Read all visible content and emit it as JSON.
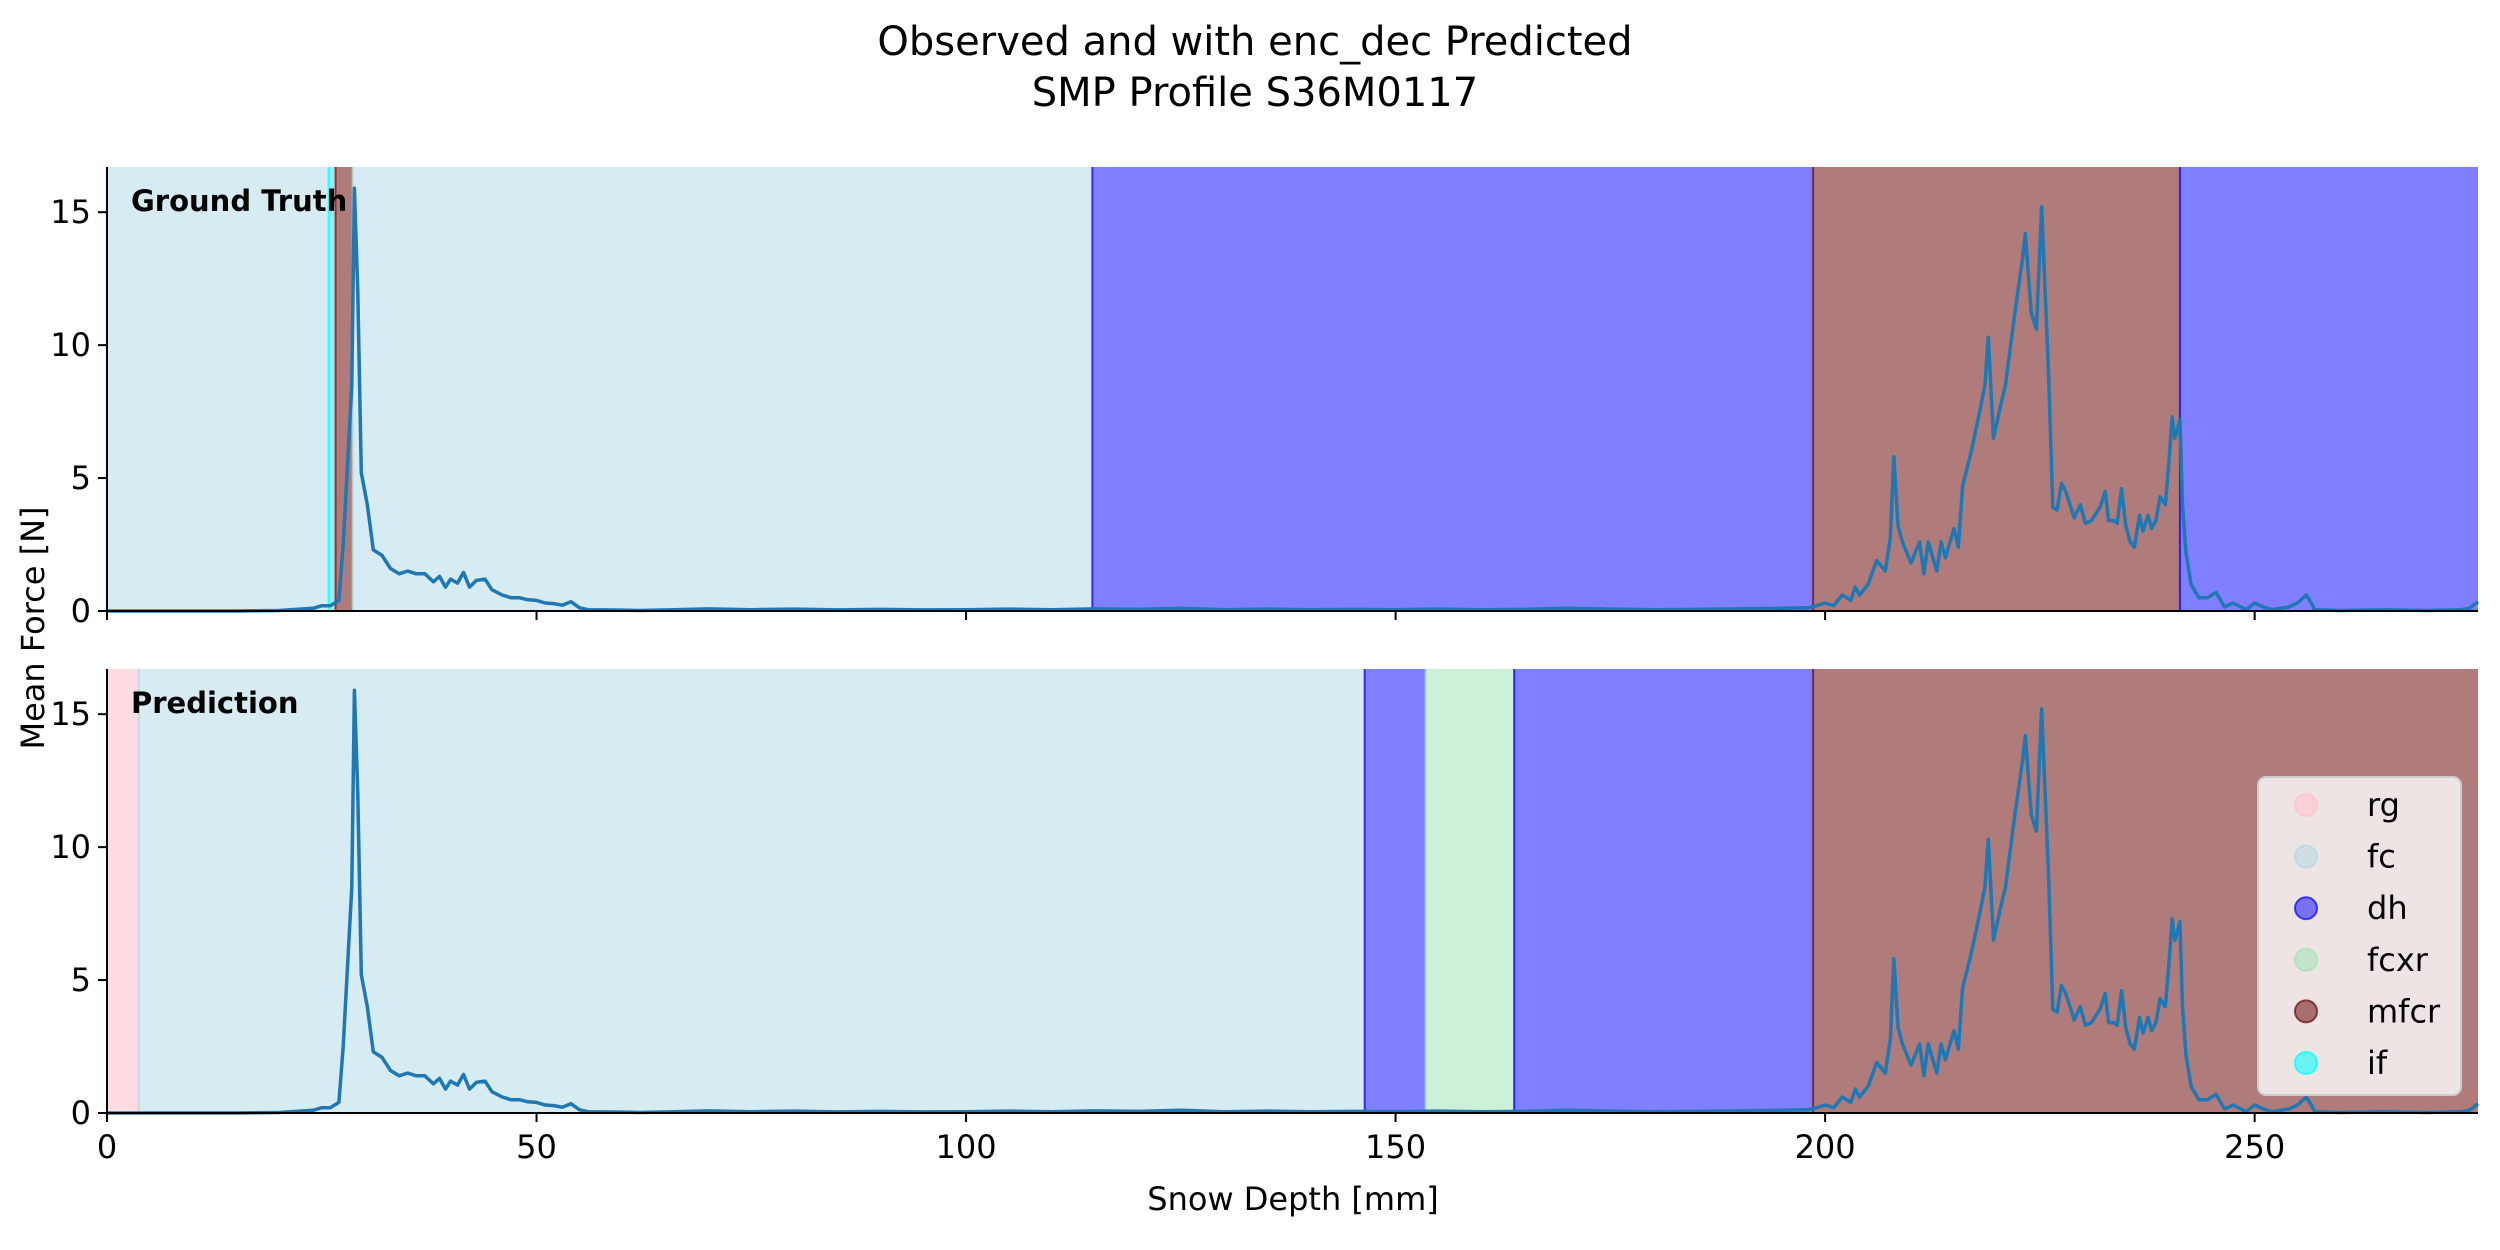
{
  "chart_data": {
    "type": "area",
    "title": [
      "Observed and with enc_dec Predicted",
      "SMP Profile S36M0117"
    ],
    "xlabel": "Snow Depth [mm]",
    "ylabel": "Mean Force [N]",
    "xlim": [
      0,
      276
    ],
    "ylim": [
      0,
      16.7
    ],
    "x_ticks": [
      0,
      50,
      100,
      150,
      200,
      250
    ],
    "y_ticks": [
      0,
      5,
      10,
      15
    ],
    "grid": false,
    "legend_position": "lower-right",
    "classes": [
      {
        "name": "rg",
        "color": "#ffc0cb",
        "alpha": 0.55
      },
      {
        "name": "fc",
        "color": "#add8e6",
        "alpha": 0.5
      },
      {
        "name": "dh",
        "color": "#0000ff",
        "alpha": 0.5
      },
      {
        "name": "fcxr",
        "color": "#9ae3b2",
        "alpha": 0.5
      },
      {
        "name": "mfcr",
        "color": "#6e0f0f",
        "alpha": 0.55
      },
      {
        "name": "if",
        "color": "#00ffff",
        "alpha": 0.55
      }
    ],
    "panels": [
      {
        "label": "Ground Truth",
        "segments": [
          {
            "start": 0,
            "end": 25.8,
            "cls": "fc"
          },
          {
            "start": 25.8,
            "end": 26.3,
            "cls": "if"
          },
          {
            "start": 26.3,
            "end": 26.6,
            "cls": "fc"
          },
          {
            "start": 26.6,
            "end": 28.6,
            "cls": "mfcr"
          },
          {
            "start": 28.6,
            "end": 114.7,
            "cls": "fc"
          },
          {
            "start": 114.7,
            "end": 198.6,
            "cls": "dh"
          },
          {
            "start": 198.6,
            "end": 241.3,
            "cls": "mfcr"
          },
          {
            "start": 241.3,
            "end": 276,
            "cls": "dh"
          }
        ]
      },
      {
        "label": "Prediction",
        "segments": [
          {
            "start": 0,
            "end": 3.7,
            "cls": "rg"
          },
          {
            "start": 3.7,
            "end": 146.4,
            "cls": "fc"
          },
          {
            "start": 146.4,
            "end": 153.5,
            "cls": "dh"
          },
          {
            "start": 153.5,
            "end": 163.8,
            "cls": "fcxr"
          },
          {
            "start": 163.8,
            "end": 198.6,
            "cls": "dh"
          },
          {
            "start": 198.6,
            "end": 276,
            "cls": "mfcr"
          }
        ]
      }
    ],
    "series": [
      {
        "color": "#1f77b4",
        "points": [
          [
            0,
            0
          ],
          [
            5,
            0
          ],
          [
            10,
            0
          ],
          [
            15,
            0
          ],
          [
            20,
            0.02
          ],
          [
            24,
            0.1
          ],
          [
            25,
            0.2
          ],
          [
            26,
            0.2
          ],
          [
            27,
            0.4
          ],
          [
            27.5,
            2.5
          ],
          [
            28,
            5.5
          ],
          [
            28.5,
            8.5
          ],
          [
            28.8,
            15.9
          ],
          [
            29.2,
            12
          ],
          [
            29.6,
            5.2
          ],
          [
            30.3,
            4
          ],
          [
            31,
            2.3
          ],
          [
            32,
            2.1
          ],
          [
            33,
            1.6
          ],
          [
            34,
            1.4
          ],
          [
            35,
            1.5
          ],
          [
            36,
            1.4
          ],
          [
            37,
            1.4
          ],
          [
            38,
            1.1
          ],
          [
            38.7,
            1.3
          ],
          [
            39.4,
            0.9
          ],
          [
            40,
            1.2
          ],
          [
            40.8,
            1.05
          ],
          [
            41.5,
            1.45
          ],
          [
            42.2,
            0.9
          ],
          [
            43,
            1.15
          ],
          [
            44,
            1.2
          ],
          [
            44.8,
            0.8
          ],
          [
            46,
            0.6
          ],
          [
            47,
            0.5
          ],
          [
            48,
            0.5
          ],
          [
            49,
            0.42
          ],
          [
            50,
            0.4
          ],
          [
            51,
            0.3
          ],
          [
            52,
            0.28
          ],
          [
            53,
            0.22
          ],
          [
            54,
            0.35
          ],
          [
            55,
            0.12
          ],
          [
            56,
            0.05
          ],
          [
            58,
            0.04
          ],
          [
            62,
            0.02
          ],
          [
            66,
            0.05
          ],
          [
            70,
            0.08
          ],
          [
            75,
            0.05
          ],
          [
            80,
            0.07
          ],
          [
            85,
            0.04
          ],
          [
            90,
            0.06
          ],
          [
            95,
            0.04
          ],
          [
            100,
            0.05
          ],
          [
            105,
            0.07
          ],
          [
            110,
            0.05
          ],
          [
            115,
            0.08
          ],
          [
            120,
            0.06
          ],
          [
            125,
            0.1
          ],
          [
            130,
            0.05
          ],
          [
            135,
            0.07
          ],
          [
            140,
            0.05
          ],
          [
            145,
            0.06
          ],
          [
            150,
            0.05
          ],
          [
            155,
            0.07
          ],
          [
            160,
            0.05
          ],
          [
            165,
            0.06
          ],
          [
            170,
            0.1
          ],
          [
            175,
            0.07
          ],
          [
            180,
            0.05
          ],
          [
            185,
            0.06
          ],
          [
            190,
            0.08
          ],
          [
            195,
            0.1
          ],
          [
            198,
            0.12
          ],
          [
            199,
            0.2
          ],
          [
            200,
            0.3
          ],
          [
            201,
            0.2
          ],
          [
            202,
            0.6
          ],
          [
            203,
            0.4
          ],
          [
            203.5,
            0.9
          ],
          [
            204,
            0.6
          ],
          [
            205,
            1.0
          ],
          [
            206,
            1.9
          ],
          [
            207,
            1.5
          ],
          [
            207.6,
            2.8
          ],
          [
            208,
            5.8
          ],
          [
            208.5,
            3.2
          ],
          [
            209,
            2.6
          ],
          [
            210,
            1.8
          ],
          [
            211,
            2.6
          ],
          [
            211.5,
            1.4
          ],
          [
            212,
            2.6
          ],
          [
            213,
            1.5
          ],
          [
            213.5,
            2.6
          ],
          [
            214,
            2.0
          ],
          [
            215,
            3.1
          ],
          [
            215.5,
            2.4
          ],
          [
            216,
            4.7
          ],
          [
            217,
            6.0
          ],
          [
            218,
            7.5
          ],
          [
            218.6,
            8.5
          ],
          [
            219,
            10.3
          ],
          [
            219.6,
            6.5
          ],
          [
            220.4,
            7.7
          ],
          [
            221,
            8.5
          ],
          [
            222,
            11.0
          ],
          [
            223,
            13.3
          ],
          [
            223.3,
            14.2
          ],
          [
            224,
            11.2
          ],
          [
            224.6,
            10.6
          ],
          [
            225.2,
            15.2
          ],
          [
            226,
            9.0
          ],
          [
            226.5,
            3.9
          ],
          [
            227,
            3.8
          ],
          [
            227.5,
            4.8
          ],
          [
            228,
            4.5
          ],
          [
            229,
            3.5
          ],
          [
            229.7,
            4.0
          ],
          [
            230.3,
            3.3
          ],
          [
            231,
            3.4
          ],
          [
            232,
            3.9
          ],
          [
            232.6,
            4.5
          ],
          [
            233,
            3.4
          ],
          [
            233.6,
            3.4
          ],
          [
            234,
            3.3
          ],
          [
            234.5,
            4.6
          ],
          [
            235,
            3.2
          ],
          [
            235.5,
            2.6
          ],
          [
            236,
            2.4
          ],
          [
            236.6,
            3.6
          ],
          [
            237,
            3.0
          ],
          [
            237.6,
            3.6
          ],
          [
            238,
            3.1
          ],
          [
            238.5,
            3.4
          ],
          [
            239,
            4.3
          ],
          [
            239.6,
            4.0
          ],
          [
            240,
            5.5
          ],
          [
            240.4,
            7.3
          ],
          [
            240.7,
            6.5
          ],
          [
            241,
            6.8
          ],
          [
            241.3,
            7.2
          ],
          [
            241.6,
            4.0
          ],
          [
            242,
            2.2
          ],
          [
            242.6,
            1.0
          ],
          [
            243.5,
            0.5
          ],
          [
            244.5,
            0.5
          ],
          [
            245.5,
            0.7
          ],
          [
            246.5,
            0.15
          ],
          [
            247.5,
            0.3
          ],
          [
            249,
            0.05
          ],
          [
            250,
            0.3
          ],
          [
            251,
            0.15
          ],
          [
            252,
            0.05
          ],
          [
            254,
            0.15
          ],
          [
            255,
            0.3
          ],
          [
            256,
            0.6
          ],
          [
            256.6,
            0.3
          ],
          [
            257,
            0.05
          ],
          [
            260,
            0.02
          ],
          [
            265,
            0.05
          ],
          [
            270,
            0.02
          ],
          [
            274,
            0.05
          ],
          [
            275,
            0.1
          ],
          [
            276,
            0.35
          ]
        ]
      }
    ]
  }
}
